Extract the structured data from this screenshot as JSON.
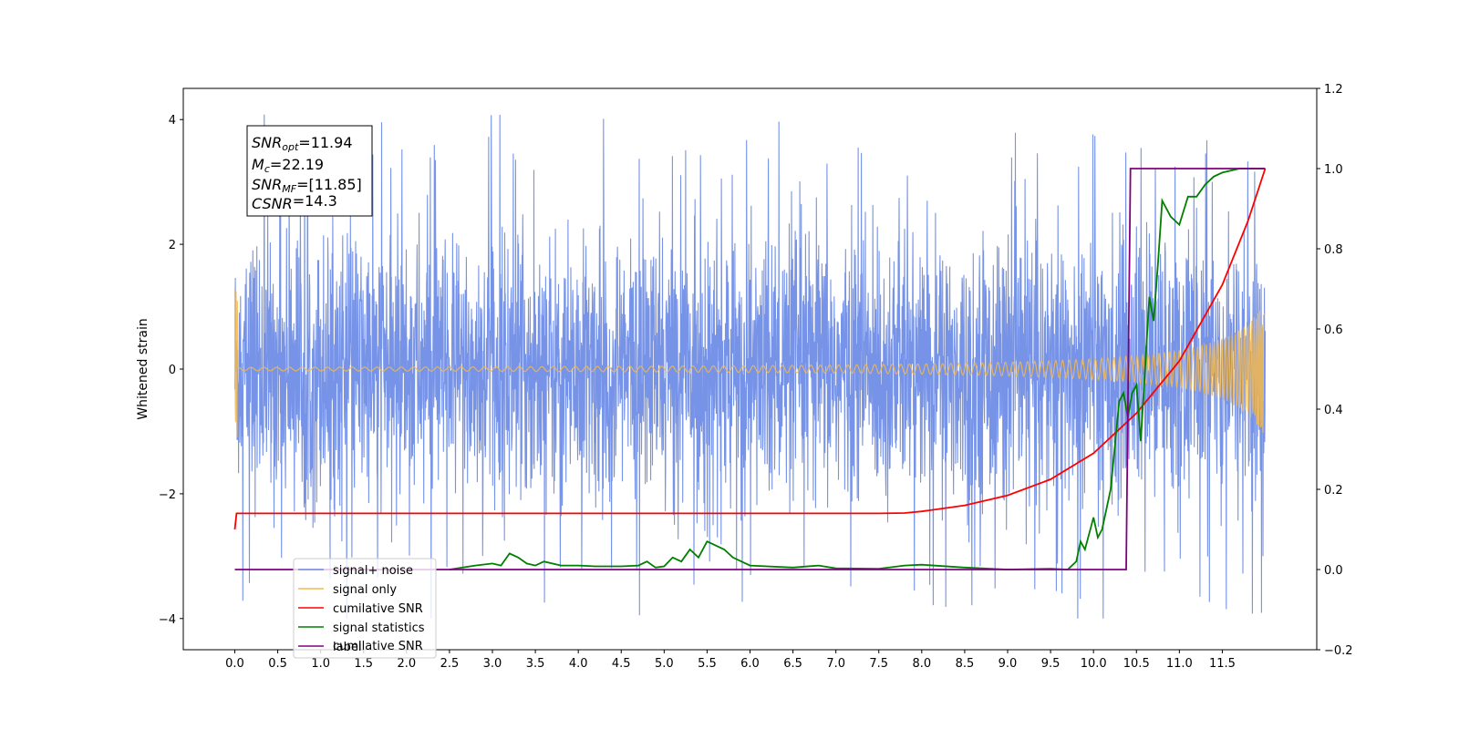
{
  "chart_data": {
    "type": "line",
    "title": "",
    "xlabel": "",
    "ylabel": "Whitened strain",
    "xlim": [
      -0.6,
      12.6
    ],
    "ylim": [
      -4.5,
      4.5
    ],
    "y2lim": [
      -0.2,
      1.2
    ],
    "x_ticks": [
      "0.0",
      "0.5",
      "1.0",
      "1.5",
      "2.0",
      "2.5",
      "3.0",
      "3.5",
      "4.0",
      "4.5",
      "5.0",
      "5.5",
      "6.0",
      "6.5",
      "7.0",
      "7.5",
      "8.0",
      "8.5",
      "9.0",
      "9.5",
      "10.0",
      "10.5",
      "11.0",
      "11.5"
    ],
    "y_ticks": [
      "4",
      "2",
      "0",
      "−2",
      "−4"
    ],
    "y2_ticks": [
      "1.2",
      "1.0",
      "0.8",
      "0.6",
      "0.4",
      "0.2",
      "0.0",
      "−0.2"
    ],
    "grid": false,
    "legend_position": "lower-left",
    "annotation": {
      "lines": [
        {
          "base": "SNR",
          "sub": "opt",
          "value": "=11.94"
        },
        {
          "base": "M",
          "sub": "c",
          "value": "=22.19"
        },
        {
          "base": "SNR",
          "sub": "MF",
          "value": "=[11.85]"
        },
        {
          "base": "CSNR",
          "sub": "",
          "value": "=14.3"
        }
      ]
    },
    "series": [
      {
        "name": "signal+ noise",
        "axis": "left",
        "color": "#6f8de6",
        "duration": 12.0,
        "noise_std": 1.05,
        "peak_min": 3.0,
        "peak_max": 4.1
      },
      {
        "name": "signal only",
        "axis": "left",
        "color": "#f5b84e",
        "start_amplitude": 1.3,
        "end_amplitude": 1.2,
        "end_frequency": 9
      },
      {
        "name": "cumilative SNR",
        "axis": "right",
        "color": "#ff0000",
        "x": [
          0.0,
          0.02,
          2.0,
          4.0,
          6.0,
          7.5,
          7.8,
          8.0,
          8.5,
          9.0,
          9.5,
          10.0,
          10.5,
          11.0,
          11.5,
          11.8,
          12.0
        ],
        "y": [
          0.1,
          0.14,
          0.14,
          0.14,
          0.14,
          0.14,
          0.141,
          0.145,
          0.16,
          0.185,
          0.225,
          0.29,
          0.39,
          0.52,
          0.71,
          0.87,
          1.0
        ]
      },
      {
        "name": "signal statistics",
        "axis": "right",
        "color": "#008000",
        "x": [
          2.5,
          2.8,
          3.0,
          3.1,
          3.2,
          3.3,
          3.4,
          3.5,
          3.6,
          3.8,
          4.0,
          4.2,
          4.5,
          4.7,
          4.8,
          4.9,
          5.0,
          5.1,
          5.2,
          5.3,
          5.4,
          5.5,
          5.6,
          5.7,
          5.8,
          6.0,
          6.5,
          6.8,
          7.0,
          7.5,
          7.8,
          8.0,
          8.5,
          9.0,
          9.5,
          9.7,
          9.8,
          9.85,
          9.9,
          10.0,
          10.05,
          10.1,
          10.2,
          10.3,
          10.35,
          10.4,
          10.45,
          10.5,
          10.55,
          10.6,
          10.65,
          10.7,
          10.75,
          10.8,
          10.9,
          11.0,
          11.1,
          11.2,
          11.3,
          11.4,
          11.5,
          11.7,
          12.0
        ],
        "y": [
          0.0,
          0.01,
          0.015,
          0.01,
          0.04,
          0.03,
          0.015,
          0.01,
          0.02,
          0.01,
          0.01,
          0.008,
          0.008,
          0.01,
          0.02,
          0.005,
          0.008,
          0.03,
          0.02,
          0.05,
          0.03,
          0.07,
          0.06,
          0.05,
          0.03,
          0.01,
          0.005,
          0.01,
          0.003,
          0.002,
          0.01,
          0.012,
          0.005,
          0.0,
          0.002,
          0.0,
          0.02,
          0.07,
          0.05,
          0.13,
          0.08,
          0.1,
          0.2,
          0.42,
          0.44,
          0.38,
          0.44,
          0.46,
          0.32,
          0.5,
          0.68,
          0.62,
          0.76,
          0.92,
          0.88,
          0.86,
          0.93,
          0.93,
          0.96,
          0.98,
          0.99,
          1.0,
          1.0
        ]
      },
      {
        "name": "label",
        "axis": "right",
        "color": "#800080",
        "x": [
          0.0,
          10.38,
          10.43,
          12.0
        ],
        "y": [
          0.0,
          0.0,
          1.0,
          1.0
        ]
      }
    ],
    "legend_ghost_text": "cumilative SNR"
  }
}
